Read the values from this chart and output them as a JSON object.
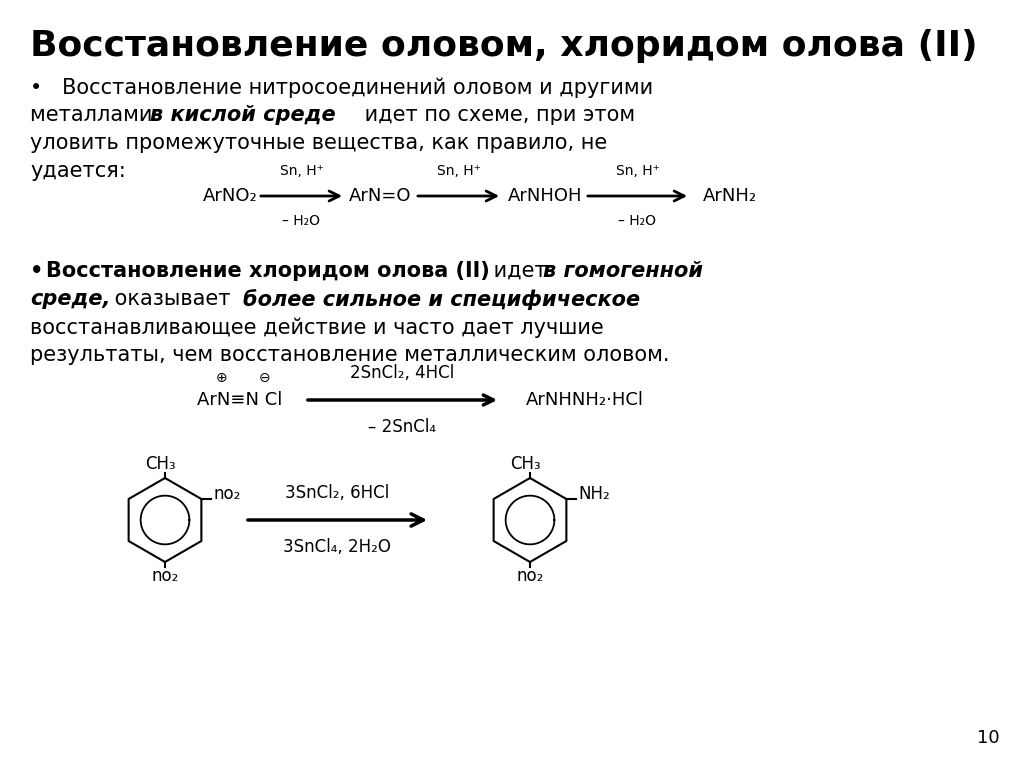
{
  "title": "Восстановление оловом, хлоридом олова (II)",
  "bg_color": "#ffffff",
  "text_color": "#000000",
  "page_number": "10",
  "reaction1_compounds": [
    "ArNO₂",
    "ArN=O",
    "ArNHOH",
    "ArNH₂"
  ],
  "reaction1_above": [
    "Sn, H⁺",
    "Sn, H⁺",
    "Sn, H⁺"
  ],
  "reaction1_below": [
    "– H₂O",
    "",
    "– H₂O"
  ],
  "reaction2_reactant": "ArN≡N Cl",
  "reaction2_above": "2SnCl₂, 4HCl",
  "reaction2_below": "– 2SnCl₄",
  "reaction2_product": "ArNHNH₂·HCl",
  "reaction3_above": "3SnCl₂, 6HCl",
  "reaction3_below": "3SnCl₄, 2H₂O",
  "left_ring_subs": {
    "top": "CH₃",
    "top_right": "no₂",
    "bottom": "no₂"
  },
  "right_ring_subs": {
    "top": "CH₃",
    "top_right": "NH₂",
    "bottom": "no₂"
  }
}
